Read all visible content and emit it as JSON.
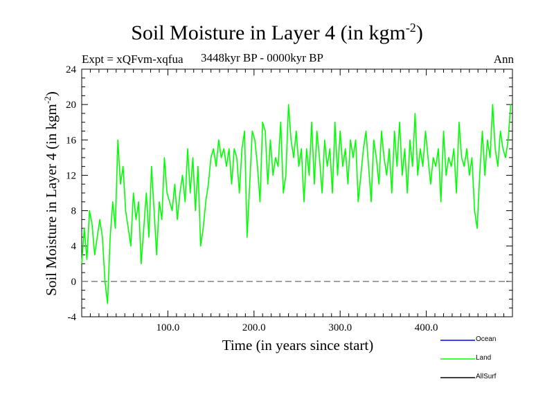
{
  "title": {
    "main": "Soil Moisture in Layer 4 (in kgm",
    "sup": "-2",
    "close": ")"
  },
  "subtitle": "3448kyr BP - 0000kyr BP",
  "expt_label": "Expt = xQFvm-xqfua",
  "season": "Ann",
  "chart_data": {
    "type": "line",
    "title": "Soil Moisture in Layer 4 (in kgm-2)",
    "xlabel": "Time (in years since start)",
    "ylabel": {
      "main": "Soil Moisture in Layer 4 (in kgm",
      "sup": "-2",
      "close": ")"
    },
    "xlim": [
      0,
      500
    ],
    "ylim": [
      -4,
      24
    ],
    "xticks": [
      100,
      200,
      300,
      400
    ],
    "xtick_labels": [
      "100.0",
      "200.0",
      "300.0",
      "400.0"
    ],
    "yticks": [
      -4,
      0,
      4,
      8,
      12,
      16,
      20,
      24
    ],
    "ytick_labels": [
      "-4",
      "0",
      "4",
      "8",
      "12",
      "16",
      "20",
      "24"
    ],
    "reference_line": {
      "y": 0,
      "style": "dashed",
      "color": "#808080"
    },
    "series": [
      {
        "name": "Ocean",
        "color": "#0000ff",
        "x": [],
        "y": []
      },
      {
        "name": "Land",
        "color": "#00ff00",
        "x": [
          0,
          3,
          6,
          9,
          12,
          15,
          18,
          21,
          24,
          27,
          30,
          33,
          36,
          39,
          42,
          45,
          48,
          51,
          54,
          57,
          60,
          63,
          66,
          69,
          72,
          75,
          78,
          81,
          84,
          87,
          90,
          93,
          96,
          99,
          102,
          105,
          108,
          111,
          114,
          117,
          120,
          123,
          126,
          129,
          132,
          135,
          138,
          141,
          144,
          147,
          150,
          153,
          156,
          159,
          162,
          165,
          168,
          171,
          174,
          177,
          180,
          183,
          186,
          189,
          192,
          195,
          198,
          201,
          204,
          207,
          210,
          213,
          216,
          219,
          222,
          225,
          228,
          231,
          234,
          237,
          240,
          243,
          246,
          249,
          252,
          255,
          258,
          261,
          264,
          267,
          270,
          273,
          276,
          279,
          282,
          285,
          288,
          291,
          294,
          297,
          300,
          303,
          306,
          309,
          312,
          315,
          318,
          321,
          324,
          327,
          330,
          333,
          336,
          339,
          342,
          345,
          348,
          351,
          354,
          357,
          360,
          363,
          366,
          369,
          372,
          375,
          378,
          381,
          384,
          387,
          390,
          393,
          396,
          399,
          402,
          405,
          408,
          411,
          414,
          417,
          420,
          423,
          426,
          429,
          432,
          435,
          438,
          441,
          444,
          447,
          450,
          453,
          456,
          459,
          462,
          465,
          468,
          471,
          474,
          477,
          480,
          483,
          486,
          489,
          492,
          495,
          498
        ],
        "y": [
          2,
          6,
          2.5,
          8,
          6.5,
          3,
          5,
          7,
          5,
          0,
          -2.5,
          5,
          9,
          6,
          16,
          11,
          13,
          8,
          6,
          4,
          10,
          7,
          9,
          2,
          6,
          10,
          5,
          13,
          8,
          3,
          9,
          7,
          14,
          10,
          9,
          8,
          11,
          7,
          10,
          12,
          9,
          15,
          10,
          14,
          8,
          13,
          4,
          6,
          9,
          11,
          14,
          15,
          13,
          16,
          14,
          15,
          13,
          15,
          11,
          15,
          14,
          10,
          15,
          17,
          5,
          11,
          17,
          16,
          13,
          9,
          18,
          17,
          11,
          16,
          12,
          14,
          13,
          18,
          10,
          12,
          20,
          16,
          14,
          17,
          13,
          15,
          9,
          15,
          12,
          18,
          11,
          17,
          14,
          10,
          16,
          13,
          15,
          10,
          18,
          12,
          17,
          13,
          15,
          11,
          16,
          14,
          16,
          9,
          12,
          15,
          17,
          13,
          9,
          16,
          14,
          11,
          17,
          14,
          12,
          15,
          10,
          17,
          13,
          18,
          12,
          15,
          10,
          16,
          13,
          19,
          12,
          15,
          13,
          17,
          14,
          11,
          14,
          13,
          15,
          9,
          17,
          12,
          14,
          13,
          15,
          10,
          18,
          14,
          13,
          15,
          12,
          14,
          8,
          6,
          12,
          17,
          12,
          16,
          14,
          20,
          15,
          13,
          17,
          15,
          14,
          16,
          20
        ]
      },
      {
        "name": "AllSurf",
        "color": "#000000",
        "x": [],
        "y": []
      }
    ]
  }
}
